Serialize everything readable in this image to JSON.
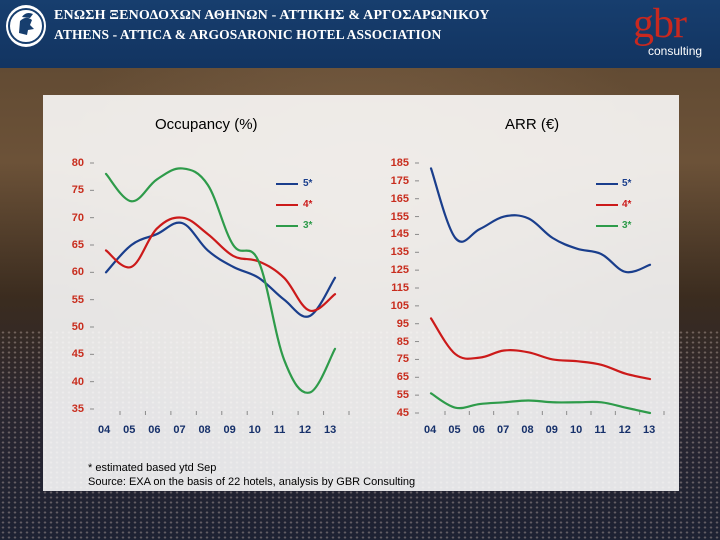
{
  "header": {
    "association_greek": "ΕΝΩΣΗ ΞΕΝΟΔΟΧΩΝ ΑΘΗΝΩΝ - ΑΤΤΙΚΗΣ & ΑΡΓΟΣΑΡΩΝΙΚΟΥ",
    "association_english": "ATHENS - ATTICA & ARGOSARONIC HOTEL ASSOCIATION",
    "brand_logo": "gbr",
    "brand_sub": "consulting"
  },
  "colors": {
    "header_bg": "#173e6e",
    "brand_red": "#c8281f",
    "tick_red": "#c82d1e",
    "tick_blue": "#16306a",
    "series_5star": "#1a3e8c",
    "series_4star": "#cc1a1a",
    "series_3star": "#2e9b4a"
  },
  "footnotes": [
    "* estimated based ytd Sep",
    "Source: EXA on the basis of 22 hotels, analysis by GBR Consulting"
  ],
  "chart_data": [
    {
      "type": "line",
      "title": "Occupancy (%)",
      "x": [
        "04",
        "05",
        "06",
        "07",
        "08",
        "09",
        "10",
        "11",
        "12",
        "13"
      ],
      "yticks": [
        35,
        40,
        45,
        50,
        55,
        60,
        65,
        70,
        75,
        80
      ],
      "ylim": [
        35,
        80
      ],
      "legend_position": "top-right",
      "series": [
        {
          "name": "5*",
          "color": "#1a3e8c",
          "values": [
            60,
            65,
            67,
            69,
            64,
            61,
            59,
            55,
            52,
            59
          ]
        },
        {
          "name": "4*",
          "color": "#cc1a1a",
          "values": [
            64,
            61,
            68,
            70,
            67,
            63,
            62,
            59,
            53,
            56
          ]
        },
        {
          "name": "3*",
          "color": "#2e9b4a",
          "values": [
            78,
            73,
            77,
            79,
            76,
            65,
            62,
            44,
            38,
            46
          ]
        }
      ]
    },
    {
      "type": "line",
      "title": "ARR (€)",
      "x": [
        "04",
        "05",
        "06",
        "07",
        "08",
        "09",
        "10",
        "11",
        "12",
        "13"
      ],
      "yticks": [
        45,
        55,
        65,
        75,
        85,
        95,
        105,
        115,
        125,
        135,
        145,
        155,
        165,
        175,
        185
      ],
      "ylim": [
        45,
        185
      ],
      "legend_position": "top-right",
      "series": [
        {
          "name": "5*",
          "color": "#1a3e8c",
          "values": [
            182,
            143,
            148,
            155,
            154,
            143,
            137,
            134,
            124,
            128
          ]
        },
        {
          "name": "4*",
          "color": "#cc1a1a",
          "values": [
            98,
            78,
            76,
            80,
            79,
            75,
            74,
            72,
            67,
            64
          ]
        },
        {
          "name": "3*",
          "color": "#2e9b4a",
          "values": [
            56,
            48,
            50,
            51,
            52,
            51,
            51,
            51,
            48,
            45
          ]
        }
      ]
    }
  ]
}
